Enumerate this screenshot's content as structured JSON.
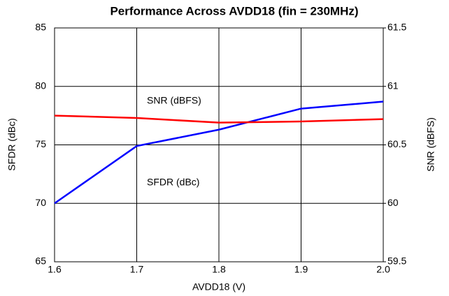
{
  "chart_data": {
    "type": "line",
    "title": "Performance Across AVDD18 (fin = 230MHz)",
    "x_label": "AVDD18 (V)",
    "y_label": "SFDR (dBc)",
    "y2_label": "SNR (dBFS)",
    "x": [
      1.6,
      1.7,
      1.8,
      1.9,
      2.0
    ],
    "series": [
      {
        "name": "SFDR (dBc)",
        "color": "#0000ff",
        "values": [
          70,
          74.9,
          76.3,
          78.1,
          78.7
        ]
      },
      {
        "name": "SNR (dBFS)",
        "color": "#ff0000",
        "axis": "y2",
        "values": [
          60.75,
          60.73,
          60.69,
          60.7,
          60.72
        ]
      }
    ],
    "xlim": [
      1.6,
      2.0
    ],
    "xticks": [
      1.6,
      1.7,
      1.8,
      1.9,
      {
        "value": 2.0,
        "label": "2.0"
      }
    ],
    "ylim": [
      65,
      85
    ],
    "yticks": [
      65,
      70,
      75,
      80,
      85
    ],
    "y2lim": [
      59.5,
      61.5
    ],
    "y2ticks": [
      59.5,
      60,
      60.5,
      61,
      61.5
    ],
    "grid": true
  }
}
